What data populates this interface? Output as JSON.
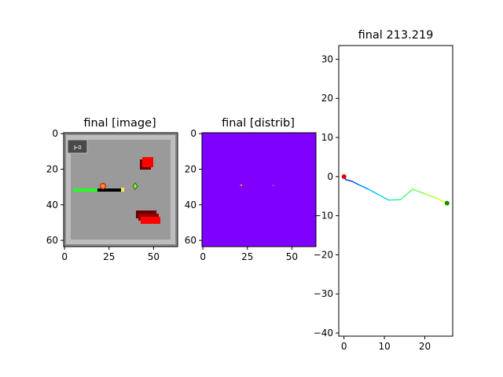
{
  "chart_data": [
    {
      "type": "heatmap",
      "title": "final [image]",
      "xlim": [
        -0.5,
        63.5
      ],
      "ylim": [
        63.5,
        -0.5
      ],
      "xticks": [
        0,
        25,
        50
      ],
      "yticks": [
        0,
        20,
        40,
        60
      ],
      "xtick_labels": [
        "0",
        "25",
        "50"
      ],
      "ytick_labels": [
        "0",
        "20",
        "40",
        "60"
      ],
      "badge_text": "⊱0",
      "colors": {
        "frame_outer": "#8a8a8a",
        "frame_light": "#bdbdbd",
        "floor": "#9a9a9a",
        "badge": "#4a4a4a",
        "red_block": "#ff0000",
        "dark_red": "#6a0000",
        "green_bar": "#22ff22",
        "black_bar": "#000000",
        "yellow": "#ffee44",
        "green_gem": "#33aa00"
      }
    },
    {
      "type": "heatmap",
      "title": "final [distrib]",
      "xlim": [
        -0.5,
        63.5
      ],
      "ylim": [
        63.5,
        -0.5
      ],
      "xticks": [
        0,
        25,
        50
      ],
      "yticks": [
        0,
        20,
        40,
        60
      ],
      "xtick_labels": [
        "0",
        "25",
        "50"
      ],
      "ytick_labels": [
        "0",
        "20",
        "40",
        "60"
      ],
      "fill_color": "#7f00ff",
      "points": [
        {
          "x": 21.5,
          "y": 29,
          "color": "#ff6a3a"
        },
        {
          "x": 39.5,
          "y": 29,
          "color": "#b030d0"
        }
      ]
    },
    {
      "type": "line",
      "title": "final 213.219",
      "xlim": [
        -1.3,
        26.9
      ],
      "ylim": [
        -40.8,
        33.5
      ],
      "xticks": [
        0,
        10,
        20
      ],
      "yticks": [
        30,
        20,
        10,
        0,
        -10,
        -20,
        -30,
        -40
      ],
      "xtick_labels": [
        "0",
        "10",
        "20"
      ],
      "ytick_labels": [
        "30",
        "20",
        "10",
        "0",
        "−10",
        "−20",
        "−30",
        "−40"
      ],
      "x": [
        0,
        0.5,
        2.0,
        3.5,
        6.0,
        8.5,
        11.0,
        14.0,
        17.0,
        20.0,
        23.0,
        25.5
      ],
      "y": [
        -0.2,
        -0.8,
        -1.2,
        -2.0,
        -3.2,
        -4.6,
        -6.0,
        -5.9,
        -3.2,
        -4.4,
        -5.6,
        -6.8
      ],
      "start": {
        "x": 0,
        "y": 0,
        "color": "#dd0000"
      },
      "end": {
        "x": 25.5,
        "y": -6.8,
        "color": "#228800"
      }
    }
  ]
}
